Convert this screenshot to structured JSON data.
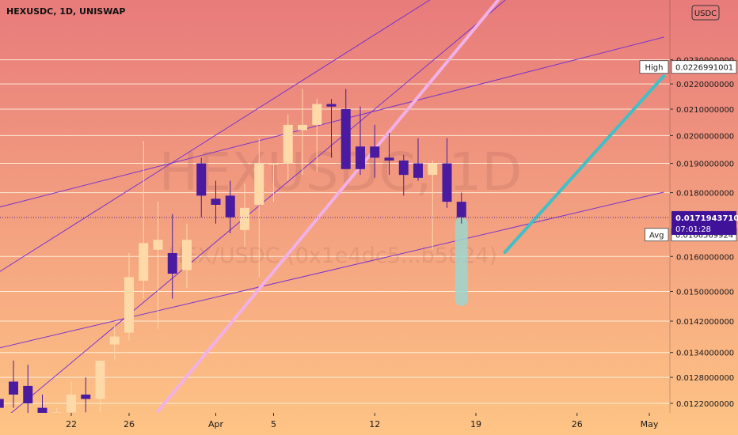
{
  "header": {
    "title": "HEXUSDC, 1D, UNISWAP"
  },
  "watermark": {
    "symbol": "HEXUSDC, 1D",
    "pair": "HEX/USDC (0x1e4dc5...b5824)"
  },
  "currency_badge": "USDC",
  "colors": {
    "bg_top": "#e87b7b",
    "bg_bottom": "#fec485",
    "up": "#ffd9a8",
    "down": "#4a1aa0",
    "trend": "#7b34cc",
    "pink": "#f2b1e6",
    "cyan": "#3fc0c8",
    "shade": "#9ed6cf",
    "price_tag": "#3f1299"
  },
  "price_labels": {
    "high_label": "High",
    "high_value": "0.0226991001",
    "avg_label": "Avg",
    "avg_value": "0.0166569924",
    "last_value": "0.0171943710",
    "countdown": "07:01:28"
  },
  "chart_data": {
    "type": "candlestick",
    "title": "HEXUSDC, 1D, UNISWAP",
    "x_ticks": [
      "22",
      "26",
      "Apr",
      "5",
      "12",
      "19",
      "26",
      "May"
    ],
    "y_ticks": [
      "0.0230000000",
      "0.0220000000",
      "0.0210000000",
      "0.0200000000",
      "0.0190000000",
      "0.0180000000",
      "0.0160000000",
      "0.0150000000",
      "0.0142000000",
      "0.0134000000",
      "0.0128000000",
      "0.0122000000"
    ],
    "y_scale": "log",
    "candles": [
      {
        "date": "2021-03-17",
        "o": 0.0123,
        "h": 0.013,
        "l": 0.0119,
        "c": 0.0121
      },
      {
        "date": "2021-03-18",
        "o": 0.0127,
        "h": 0.0132,
        "l": 0.0121,
        "c": 0.0124
      },
      {
        "date": "2021-03-19",
        "o": 0.0126,
        "h": 0.0131,
        "l": 0.0118,
        "c": 0.0122
      },
      {
        "date": "2021-03-20",
        "o": 0.0121,
        "h": 0.0124,
        "l": 0.0116,
        "c": 0.0118
      },
      {
        "date": "2021-03-21",
        "o": 0.0118,
        "h": 0.0121,
        "l": 0.0115,
        "c": 0.012
      },
      {
        "date": "2021-03-22",
        "o": 0.012,
        "h": 0.0127,
        "l": 0.0119,
        "c": 0.0124
      },
      {
        "date": "2021-03-23",
        "o": 0.0124,
        "h": 0.0128,
        "l": 0.012,
        "c": 0.0123
      },
      {
        "date": "2021-03-24",
        "o": 0.0123,
        "h": 0.0132,
        "l": 0.012,
        "c": 0.0132
      },
      {
        "date": "2021-03-25",
        "o": 0.0136,
        "h": 0.0141,
        "l": 0.0132,
        "c": 0.0138
      },
      {
        "date": "2021-03-26",
        "o": 0.0139,
        "h": 0.0161,
        "l": 0.0137,
        "c": 0.0154
      },
      {
        "date": "2021-03-27",
        "o": 0.0153,
        "h": 0.0198,
        "l": 0.0148,
        "c": 0.0164
      },
      {
        "date": "2021-03-28",
        "o": 0.0162,
        "h": 0.0177,
        "l": 0.014,
        "c": 0.0165
      },
      {
        "date": "2021-03-29",
        "o": 0.0161,
        "h": 0.0173,
        "l": 0.0148,
        "c": 0.0155
      },
      {
        "date": "2021-03-30",
        "o": 0.0156,
        "h": 0.017,
        "l": 0.0151,
        "c": 0.0165
      },
      {
        "date": "2021-03-31",
        "o": 0.019,
        "h": 0.0192,
        "l": 0.0172,
        "c": 0.0179
      },
      {
        "date": "2021-04-01",
        "o": 0.0178,
        "h": 0.0184,
        "l": 0.017,
        "c": 0.0176
      },
      {
        "date": "2021-04-02",
        "o": 0.0179,
        "h": 0.0184,
        "l": 0.0167,
        "c": 0.0172
      },
      {
        "date": "2021-04-03",
        "o": 0.0168,
        "h": 0.0183,
        "l": 0.0163,
        "c": 0.0175
      },
      {
        "date": "2021-04-04",
        "o": 0.0176,
        "h": 0.0199,
        "l": 0.0154,
        "c": 0.019
      },
      {
        "date": "2021-04-05",
        "o": 0.019,
        "h": 0.019,
        "l": 0.0177,
        "c": 0.019
      },
      {
        "date": "2021-04-06",
        "o": 0.019,
        "h": 0.0208,
        "l": 0.0184,
        "c": 0.0204
      },
      {
        "date": "2021-04-07",
        "o": 0.0202,
        "h": 0.0218,
        "l": 0.0186,
        "c": 0.0204
      },
      {
        "date": "2021-04-08",
        "o": 0.0204,
        "h": 0.0214,
        "l": 0.0187,
        "c": 0.0212
      },
      {
        "date": "2021-04-09",
        "o": 0.0212,
        "h": 0.0214,
        "l": 0.0192,
        "c": 0.0211
      },
      {
        "date": "2021-04-10",
        "o": 0.021,
        "h": 0.0218,
        "l": 0.0189,
        "c": 0.0188
      },
      {
        "date": "2021-04-11",
        "o": 0.0196,
        "h": 0.0211,
        "l": 0.0186,
        "c": 0.0188
      },
      {
        "date": "2021-04-12",
        "o": 0.0196,
        "h": 0.0204,
        "l": 0.0185,
        "c": 0.0192
      },
      {
        "date": "2021-04-13",
        "o": 0.0192,
        "h": 0.0201,
        "l": 0.0186,
        "c": 0.0191
      },
      {
        "date": "2021-04-14",
        "o": 0.0191,
        "h": 0.0193,
        "l": 0.0179,
        "c": 0.0186
      },
      {
        "date": "2021-04-15",
        "o": 0.019,
        "h": 0.0199,
        "l": 0.0184,
        "c": 0.0185
      },
      {
        "date": "2021-04-16",
        "o": 0.0186,
        "h": 0.0191,
        "l": 0.0162,
        "c": 0.019
      },
      {
        "date": "2021-04-17",
        "o": 0.019,
        "h": 0.0199,
        "l": 0.0175,
        "c": 0.0177
      },
      {
        "date": "2021-04-18",
        "o": 0.0177,
        "h": 0.018,
        "l": 0.017,
        "c": 0.0172
      }
    ],
    "current_price": 0.017194371,
    "high": 0.0226991001,
    "average": 0.0166569924,
    "horizontal_lines": [
      0.023,
      0.022,
      0.021,
      0.02,
      0.019,
      0.018,
      0.016,
      0.015,
      0.0142,
      0.0134,
      0.0128,
      0.0122
    ]
  }
}
